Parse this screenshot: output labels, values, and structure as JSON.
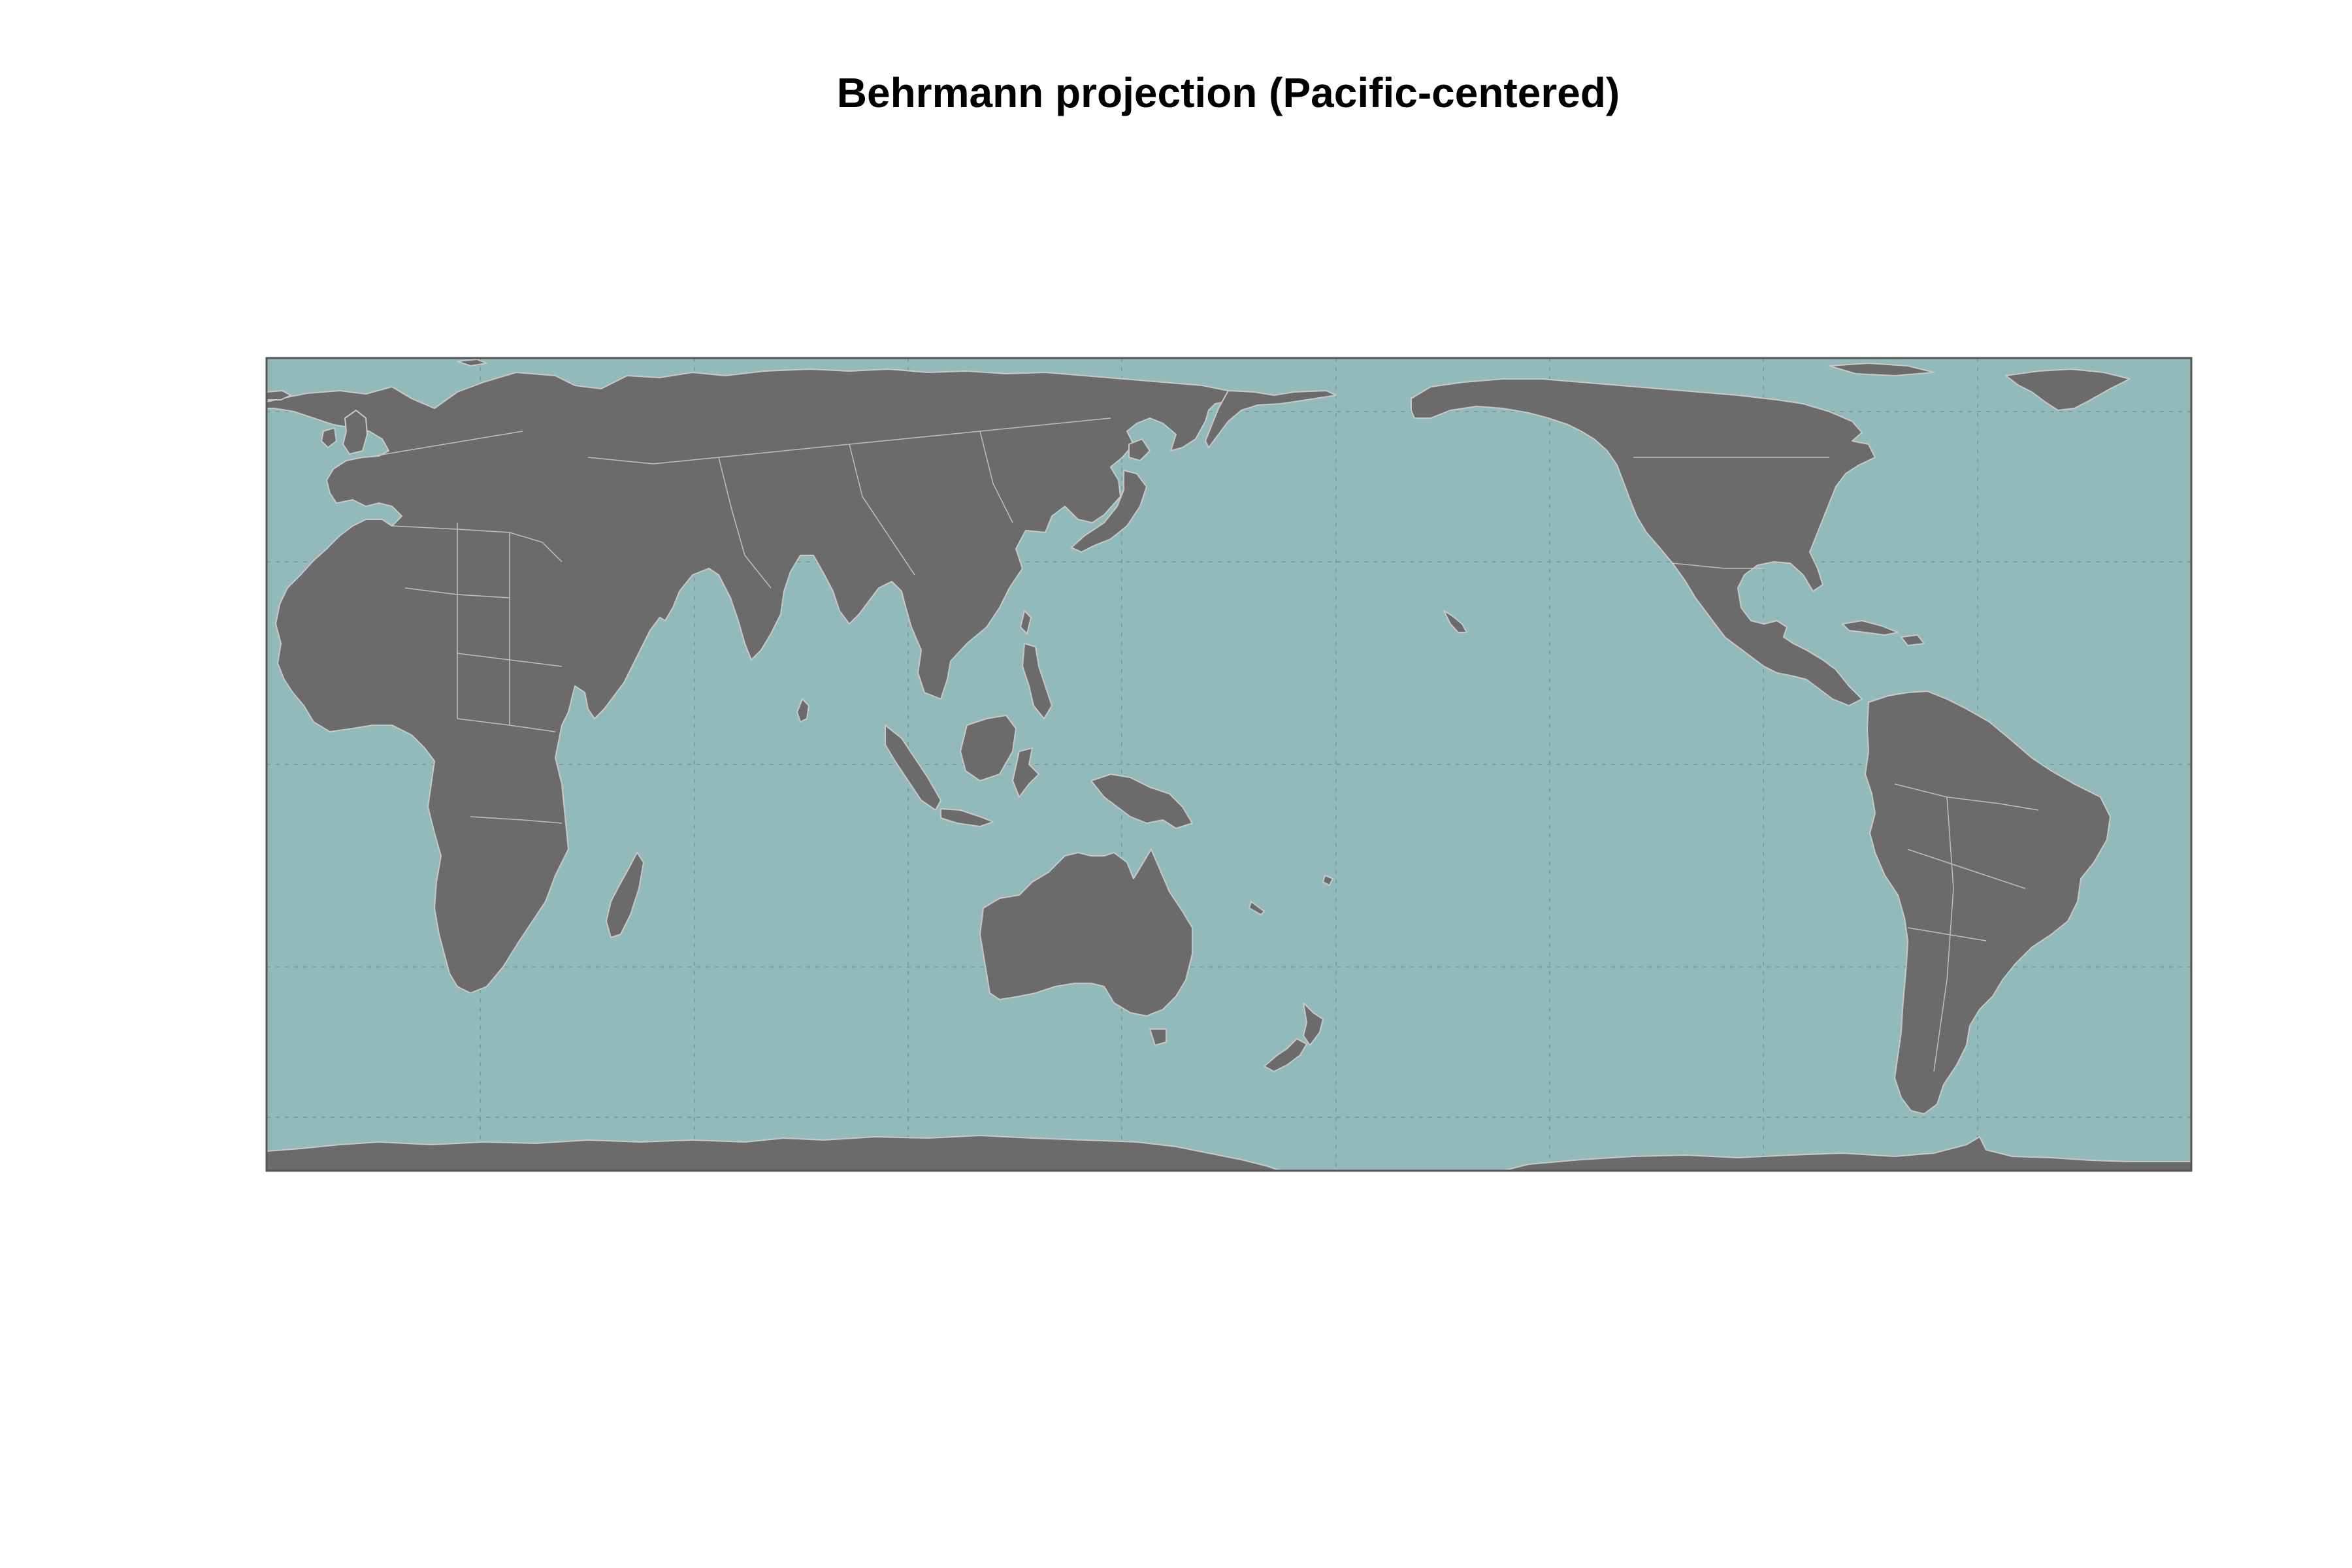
{
  "title": "Behrmann projection (Pacific-centered)",
  "map": {
    "projection": "Behrmann",
    "center": "Pacific",
    "central_meridian": 150,
    "ocean_color": "#93BABB",
    "land_color": "#6B6B6B",
    "border_color": "#C8C8C8",
    "graticule_color": "#7A9A9A",
    "frame_color": "#555555",
    "graticule_lon_step": 60,
    "graticule_lat_step": 30
  }
}
